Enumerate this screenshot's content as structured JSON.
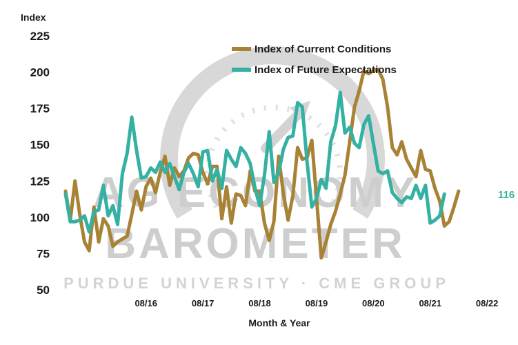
{
  "chart_data": {
    "type": "line",
    "title": "",
    "xlabel": "Month & Year",
    "ylabel": "Index",
    "ylim": [
      50,
      225
    ],
    "yticks": [
      50,
      75,
      100,
      125,
      150,
      175,
      200,
      225
    ],
    "x_tick_labels": [
      "08/16",
      "08/17",
      "08/18",
      "08/19",
      "08/20",
      "08/21",
      "08/22"
    ],
    "x_tick_positions": [
      17,
      29,
      41,
      53,
      65,
      77,
      89
    ],
    "x_range": [
      0,
      90
    ],
    "legend_position": "top-center",
    "series": [
      {
        "name": "Index of Current Conditions",
        "color": "#a88336",
        "values": [
          118,
          98,
          125,
          102,
          83,
          77,
          107,
          83,
          99,
          94,
          80,
          83,
          85,
          87,
          102,
          118,
          105,
          121,
          127,
          117,
          131,
          142,
          122,
          134,
          128,
          132,
          141,
          144,
          143,
          131,
          123,
          135,
          135,
          99,
          121,
          96,
          116,
          115,
          108,
          132,
          118,
          118,
          96,
          84,
          97,
          142,
          116,
          98,
          115,
          148,
          140,
          141,
          153,
          113,
          72,
          83,
          95,
          104,
          116,
          129,
          152,
          176,
          187,
          201,
          199,
          201,
          202,
          195,
          176,
          148,
          143,
          152,
          140,
          134,
          128,
          146,
          133,
          132,
          120,
          111,
          94,
          97,
          107,
          118
        ]
      },
      {
        "name": "Index of Future Expectations",
        "color": "#35b1a3",
        "values": [
          116,
          97,
          97,
          98,
          101,
          90,
          104,
          105,
          122,
          101,
          108,
          95,
          130,
          144,
          169,
          146,
          127,
          128,
          134,
          131,
          138,
          131,
          137,
          128,
          119,
          131,
          137,
          130,
          121,
          145,
          146,
          125,
          133,
          120,
          146,
          140,
          135,
          148,
          144,
          137,
          120,
          108,
          129,
          159,
          124,
          131,
          147,
          155,
          156,
          179,
          176,
          138,
          107,
          113,
          126,
          120,
          152,
          163,
          186,
          158,
          162,
          151,
          148,
          164,
          170,
          151,
          132,
          130,
          132,
          117,
          113,
          110,
          114,
          113,
          122,
          113,
          122,
          96,
          98,
          101,
          116
        ]
      }
    ],
    "end_label": "116"
  },
  "watermark": {
    "line1": "AG ECONOMY",
    "line2": "BAROMETER",
    "line3": "PURDUE UNIVERSITY · CME GROUP"
  }
}
